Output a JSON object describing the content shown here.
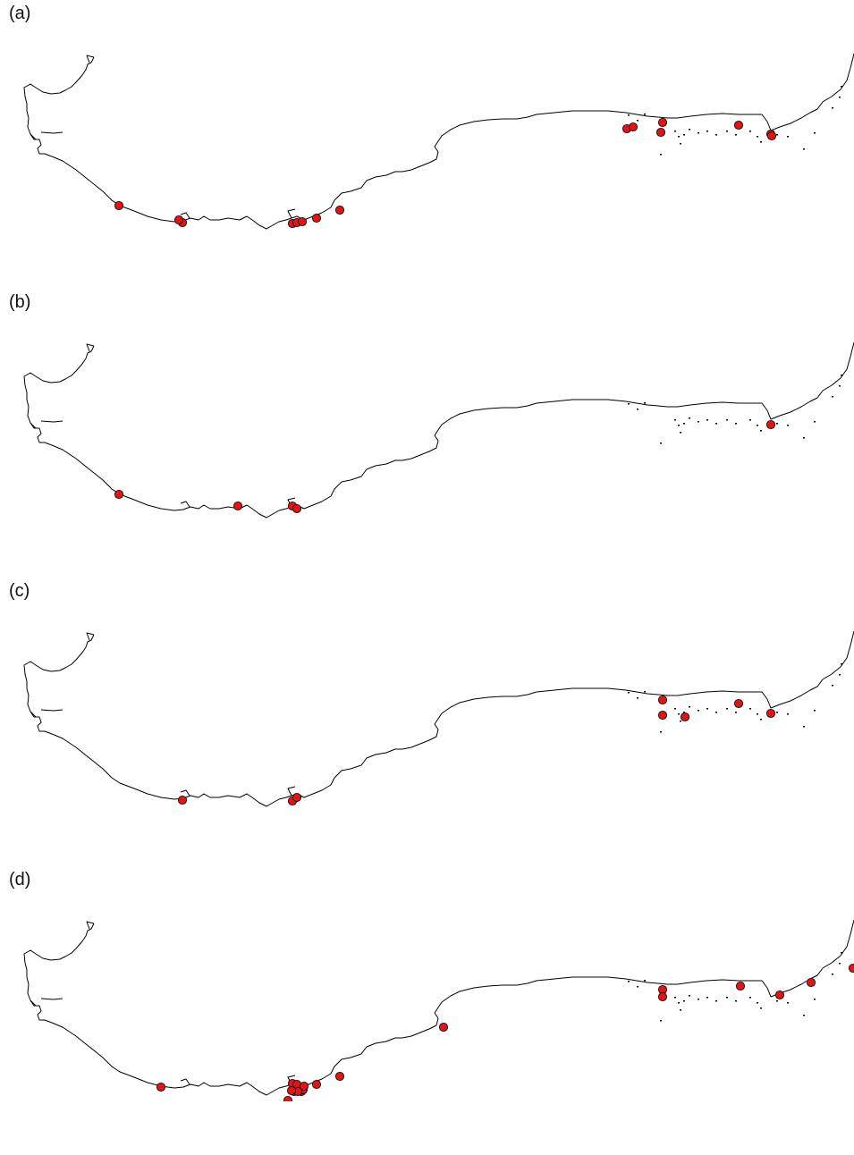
{
  "panels": [
    {
      "label": "(a)",
      "marker_count": 15
    },
    {
      "label": "(b)",
      "marker_count": 5
    },
    {
      "label": "(c)",
      "marker_count": 8
    },
    {
      "label": "(d)",
      "marker_count": 19
    }
  ],
  "marker_color": "#e41414",
  "marker_outline_color": "#111111",
  "coastline_color": "#000000"
}
